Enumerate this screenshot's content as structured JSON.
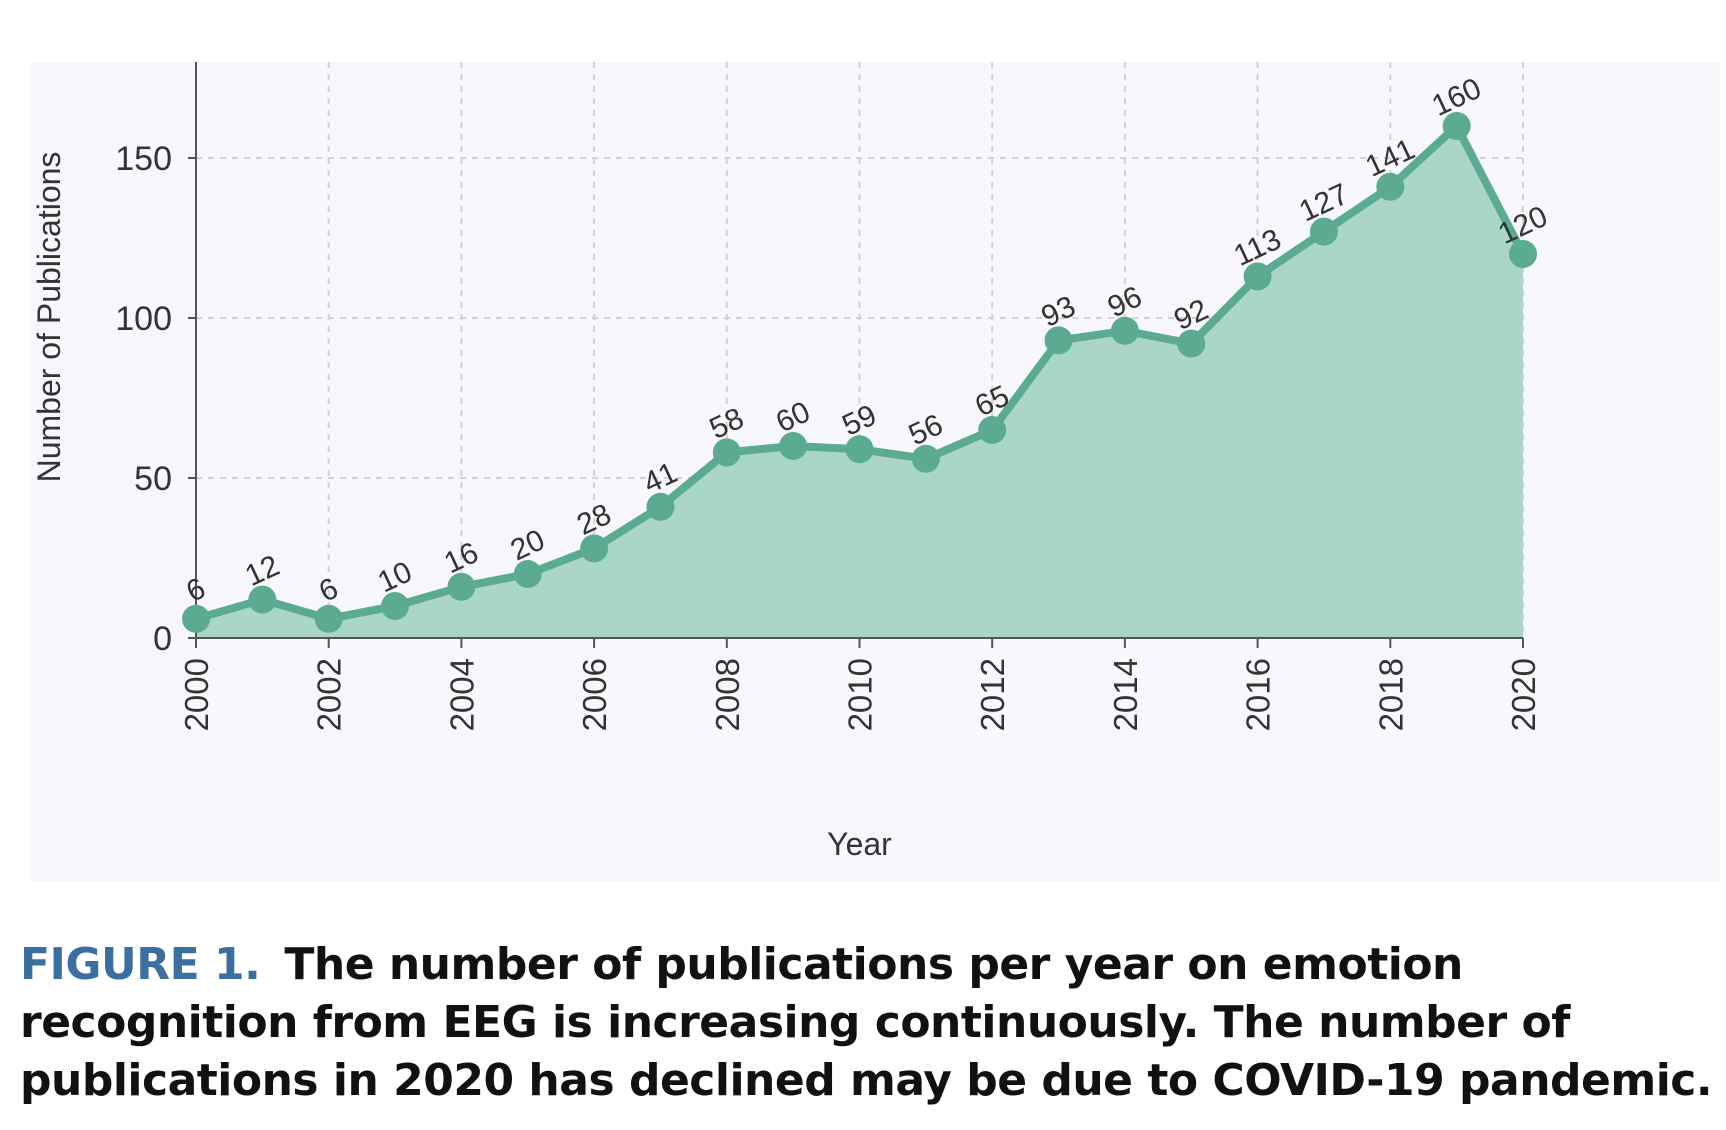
{
  "chart_data": {
    "type": "area",
    "xlabel": "Year",
    "ylabel": "Number of Publications",
    "x": [
      2000,
      2001,
      2002,
      2003,
      2004,
      2005,
      2006,
      2007,
      2008,
      2009,
      2010,
      2011,
      2012,
      2013,
      2014,
      2015,
      2016,
      2017,
      2018,
      2019,
      2020
    ],
    "values": [
      6,
      12,
      6,
      10,
      16,
      20,
      28,
      41,
      58,
      60,
      59,
      56,
      65,
      93,
      96,
      92,
      113,
      127,
      141,
      160,
      120
    ],
    "x_ticks": [
      2000,
      2002,
      2004,
      2006,
      2008,
      2010,
      2012,
      2014,
      2016,
      2018,
      2020
    ],
    "y_ticks": [
      0,
      50,
      100,
      150
    ],
    "xlim": [
      2000,
      2020
    ],
    "ylim": [
      0,
      180
    ],
    "grid": true,
    "colors": {
      "line": "#5aab92",
      "fill": "#a9d6c8",
      "grid": "#d2d2d2",
      "axis": "#555555",
      "panel": "#f8f8fc"
    }
  },
  "caption": {
    "label": "FIGURE 1.",
    "text": "The number of publications per year on emotion recognition from EEG is increasing continuously. The number of publications in 2020 has declined may be due to COVID-19 pandemic."
  }
}
